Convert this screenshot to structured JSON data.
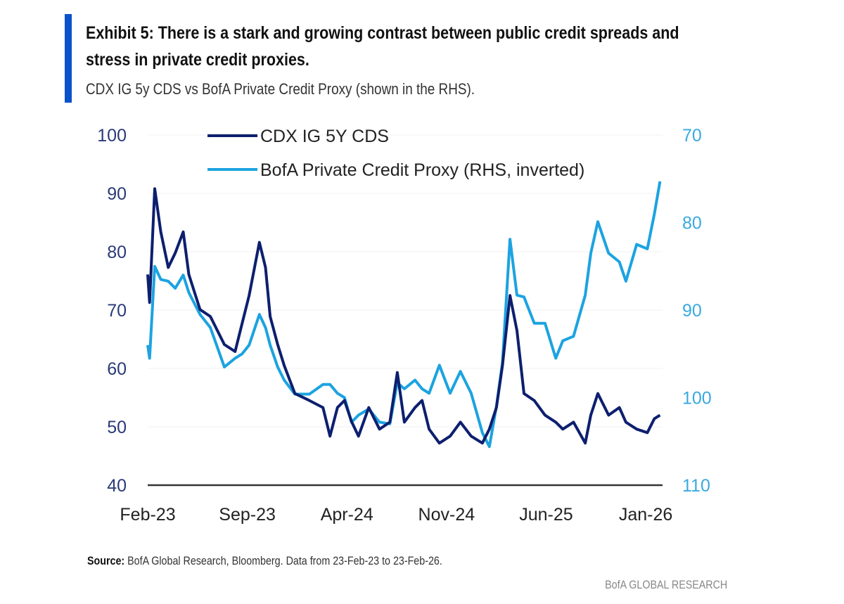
{
  "header": {
    "title": "Exhibit 5: There is a stark and growing contrast between public credit spreads and stress in private credit proxies.",
    "subtitle": "CDX IG 5y CDS vs BofA Private Credit Proxy (shown in the RHS)."
  },
  "footer": {
    "source_label": "Source:",
    "source_text": " BofA Global Research, Bloomberg. Data from 23-Feb-23 to 23-Feb-26.",
    "brand": "BofA GLOBAL RESEARCH"
  },
  "chart_data": {
    "type": "line",
    "title": "",
    "xlabel": "",
    "ylabel": "",
    "grid": false,
    "legend_position": "top-left",
    "colors": {
      "cdx": "#0d1f6e",
      "proxy": "#1ca3e0",
      "axis_left": "#2a3a7a",
      "axis_right": "#39a9e0"
    },
    "ylim_left": [
      40,
      100
    ],
    "ylim_right": [
      70,
      110
    ],
    "right_axis_inverted": true,
    "y_ticks_left": [
      "40",
      "50",
      "60",
      "70",
      "80",
      "90",
      "100"
    ],
    "y_ticks_right": [
      "70",
      "80",
      "90",
      "100",
      "110"
    ],
    "x_ticks": [
      {
        "label": "Feb-23",
        "month": "2023-02"
      },
      {
        "label": "Sep-23",
        "month": "2023-09"
      },
      {
        "label": "Apr-24",
        "month": "2024-04"
      },
      {
        "label": "Nov-24",
        "month": "2024-11"
      },
      {
        "label": "Jun-25",
        "month": "2025-06"
      },
      {
        "label": "Jan-26",
        "month": "2026-01"
      }
    ],
    "x": [
      "2023-02-23",
      "2023-02-27",
      "2023-03-10",
      "2023-03-23",
      "2023-04-08",
      "2023-04-23",
      "2023-05-10",
      "2023-05-22",
      "2023-06-15",
      "2023-07-07",
      "2023-08-06",
      "2023-08-29",
      "2023-09-13",
      "2023-09-28",
      "2023-10-20",
      "2023-11-02",
      "2023-11-12",
      "2023-11-28",
      "2023-12-12",
      "2024-01-04",
      "2024-02-04",
      "2024-03-04",
      "2024-03-19",
      "2024-04-04",
      "2024-04-19",
      "2024-05-04",
      "2024-05-19",
      "2024-06-10",
      "2024-07-03",
      "2024-07-25",
      "2024-08-10",
      "2024-08-25",
      "2024-09-17",
      "2024-10-02",
      "2024-10-17",
      "2024-11-08",
      "2024-12-01",
      "2024-12-23",
      "2025-01-15",
      "2025-02-08",
      "2025-02-23",
      "2025-03-10",
      "2025-03-23",
      "2025-04-08",
      "2025-04-23",
      "2025-05-08",
      "2025-05-30",
      "2025-06-22",
      "2025-07-15",
      "2025-07-30",
      "2025-08-22",
      "2025-09-16",
      "2025-09-28",
      "2025-10-13",
      "2025-11-05",
      "2025-11-28",
      "2025-12-12",
      "2026-01-04",
      "2026-01-27",
      "2026-02-11",
      "2026-02-23"
    ],
    "series": [
      {
        "name": "CDX IG 5Y CDS",
        "axis": "left",
        "values": [
          76.1,
          71.3,
          90.8,
          83.4,
          77.3,
          79.8,
          83.4,
          76.1,
          70.1,
          68.9,
          64.1,
          62.9,
          67.7,
          72.5,
          81.6,
          77.3,
          68.9,
          64.1,
          60.5,
          55.7,
          54.5,
          53.3,
          48.4,
          53.3,
          54.5,
          50.9,
          48.4,
          53.3,
          49.6,
          50.8,
          59.3,
          50.8,
          53.3,
          54.5,
          49.6,
          47.2,
          48.4,
          50.8,
          48.4,
          47.2,
          49.6,
          53.3,
          60.5,
          72.5,
          66.5,
          55.7,
          54.5,
          52.0,
          50.8,
          49.6,
          50.8,
          47.2,
          52.0,
          55.7,
          52.0,
          53.3,
          50.8,
          49.6,
          49.0,
          51.4,
          52.0
        ]
      },
      {
        "name": "BofA Private Credit Proxy (RHS, inverted)",
        "axis": "right",
        "values": [
          94,
          95.5,
          85,
          86.5,
          86.7,
          87.5,
          86,
          88,
          90.5,
          92,
          96.5,
          95.5,
          95,
          94,
          90.5,
          92,
          94,
          96.5,
          98,
          99.6,
          99.6,
          98.5,
          98.5,
          99.5,
          100,
          102.8,
          102,
          101.3,
          102.8,
          103,
          98.3,
          99,
          98,
          99,
          99.5,
          96.3,
          99.5,
          97,
          99.5,
          104,
          105.6,
          101,
          96,
          81.9,
          88.3,
          88.5,
          91.5,
          91.5,
          95.5,
          93.5,
          93,
          88.3,
          83.5,
          79.9,
          83.5,
          84.5,
          86.7,
          82.5,
          83,
          79,
          75.3
        ]
      }
    ]
  }
}
